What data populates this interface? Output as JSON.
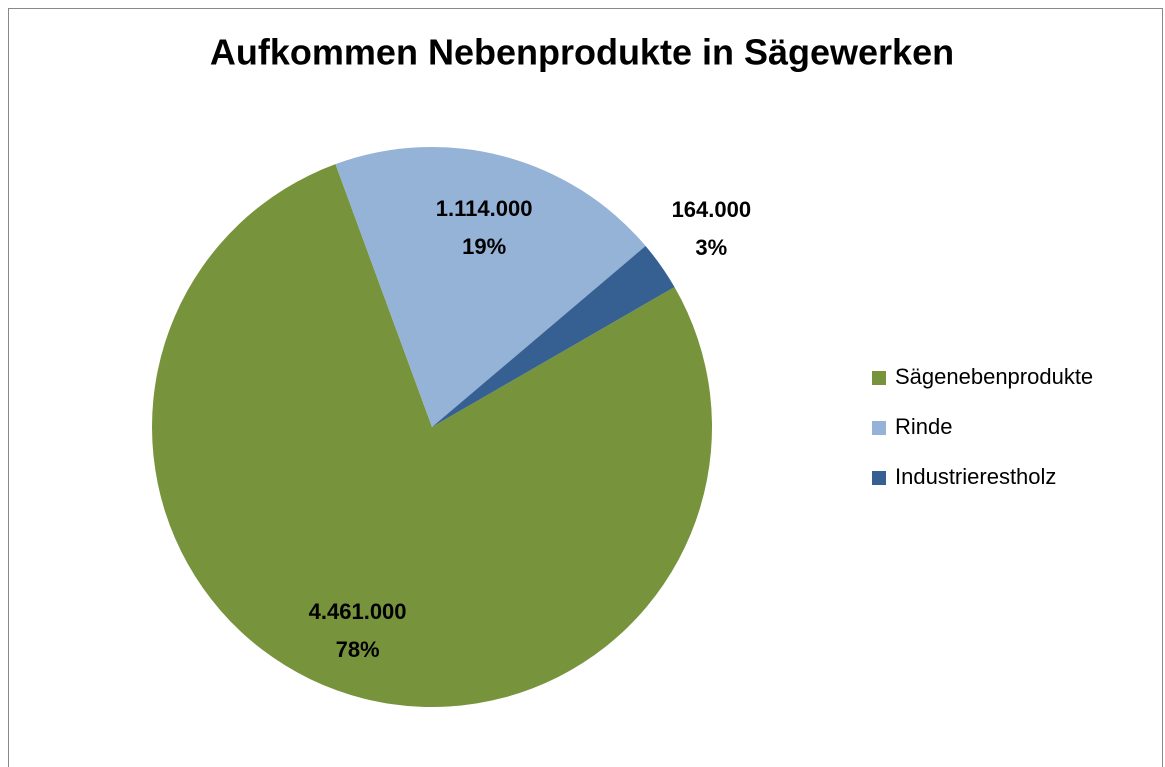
{
  "chart_data": {
    "type": "pie",
    "title": "Aufkommen Nebenprodukte in Sägewerken",
    "categories": [
      "Sägenebenprodukte",
      "Rinde",
      "Industrierestholz"
    ],
    "values": [
      4461000,
      1114000,
      164000
    ],
    "value_labels": [
      "4.461.000",
      "1.114.000",
      "164.000"
    ],
    "percentages": [
      78,
      19,
      3
    ],
    "percentage_labels": [
      "78%",
      "19%",
      "3%"
    ],
    "colors": [
      "#77933c",
      "#95b3d7",
      "#376092"
    ],
    "legend": "right"
  }
}
